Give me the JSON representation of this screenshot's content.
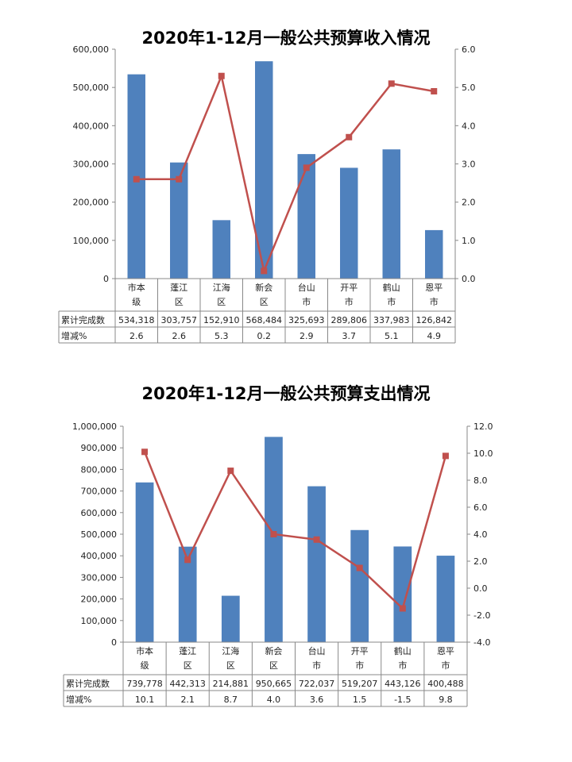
{
  "chart_data": [
    {
      "type": "bar+line",
      "title": "2020年1-12月一般公共预算收入情况",
      "categories": [
        "市本级",
        "蓬江区",
        "江海区",
        "新会区",
        "台山市",
        "开平市",
        "鹤山市",
        "恩平市"
      ],
      "category_lines": [
        [
          "市本",
          "级"
        ],
        [
          "蓬江",
          "区"
        ],
        [
          "江海",
          "区"
        ],
        [
          "新会",
          "区"
        ],
        [
          "台山",
          "市"
        ],
        [
          "开平",
          "市"
        ],
        [
          "鹤山",
          "市"
        ],
        [
          "恩平",
          "市"
        ]
      ],
      "series": [
        {
          "name": "累计完成数",
          "type": "bar",
          "axis": "left",
          "values": [
            534318,
            303757,
            152910,
            568484,
            325693,
            289806,
            337983,
            126842
          ],
          "labels": [
            "534,318",
            "303,757",
            "152,910",
            "568,484",
            "325,693",
            "289,806",
            "337,983",
            "126,842"
          ]
        },
        {
          "name": "增减%",
          "type": "line",
          "axis": "right",
          "values": [
            2.6,
            2.6,
            5.3,
            0.2,
            2.9,
            3.7,
            5.1,
            4.9
          ],
          "labels": [
            "2.6",
            "2.6",
            "5.3",
            "0.2",
            "2.9",
            "3.7",
            "5.1",
            "4.9"
          ]
        }
      ],
      "ylim": [
        0,
        600000
      ],
      "y2lim": [
        0,
        6
      ],
      "yticks": [
        "0",
        "100,000",
        "200,000",
        "300,000",
        "400,000",
        "500,000",
        "600,000"
      ],
      "y2ticks": [
        "0.0",
        "1.0",
        "2.0",
        "3.0",
        "4.0",
        "5.0",
        "6.0"
      ]
    },
    {
      "type": "bar+line",
      "title": "2020年1-12月一般公共预算支出情况",
      "categories": [
        "市本级",
        "蓬江区",
        "江海区",
        "新会区",
        "台山市",
        "开平市",
        "鹤山市",
        "恩平市"
      ],
      "category_lines": [
        [
          "市本",
          "级"
        ],
        [
          "蓬江",
          "区"
        ],
        [
          "江海",
          "区"
        ],
        [
          "新会",
          "区"
        ],
        [
          "台山",
          "市"
        ],
        [
          "开平",
          "市"
        ],
        [
          "鹤山",
          "市"
        ],
        [
          "恩平",
          "市"
        ]
      ],
      "series": [
        {
          "name": "累计完成数",
          "type": "bar",
          "axis": "left",
          "values": [
            739778,
            442313,
            214881,
            950665,
            722037,
            519207,
            443126,
            400488
          ],
          "labels": [
            "739,778",
            "442,313",
            "214,881",
            "950,665",
            "722,037",
            "519,207",
            "443,126",
            "400,488"
          ]
        },
        {
          "name": "增减%",
          "type": "line",
          "axis": "right",
          "values": [
            10.1,
            2.1,
            8.7,
            4.0,
            3.6,
            1.5,
            -1.5,
            9.8
          ],
          "labels": [
            "10.1",
            "2.1",
            "8.7",
            "4.0",
            "3.6",
            "1.5",
            "-1.5",
            "9.8"
          ]
        }
      ],
      "ylim": [
        0,
        1000000
      ],
      "y2lim": [
        -4,
        12
      ],
      "yticks": [
        "0",
        "100,000",
        "200,000",
        "300,000",
        "400,000",
        "500,000",
        "600,000",
        "700,000",
        "800,000",
        "900,000",
        "1,000,000"
      ],
      "y2ticks": [
        "-4.0",
        "-2.0",
        "0.0",
        "2.0",
        "4.0",
        "6.0",
        "8.0",
        "10.0",
        "12.0"
      ]
    }
  ],
  "colors": {
    "bar": "#4f81bd",
    "line": "#c0504d",
    "grid": "#888888"
  }
}
